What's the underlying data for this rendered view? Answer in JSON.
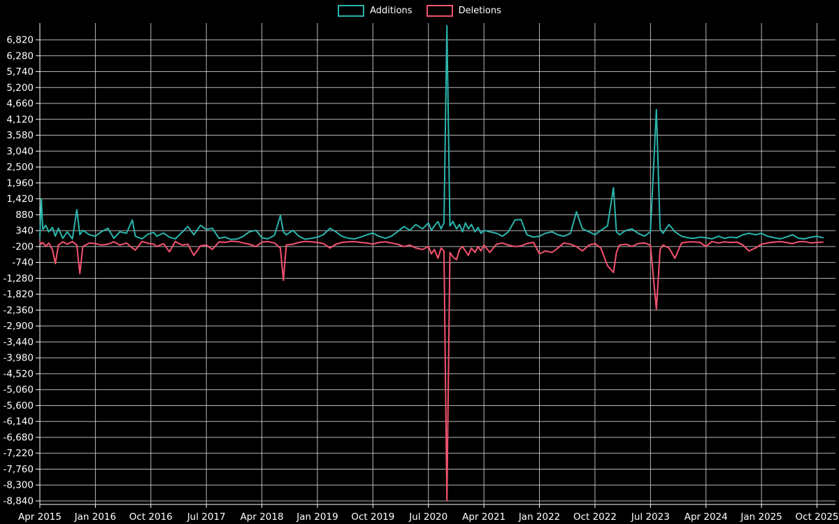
{
  "colors": {
    "background": "#000000",
    "grid": "#d9d9d9",
    "text": "#ffffff",
    "additions": "#2bb5ad",
    "deletions": "#f4536e"
  },
  "legend": {
    "items": [
      {
        "label": "Additions",
        "color": "#2bb5ad"
      },
      {
        "label": "Deletions",
        "color": "#f4536e"
      }
    ]
  },
  "chart_data": {
    "type": "line",
    "legend_position": "top-center",
    "grid": true,
    "x_axis": {
      "tick_labels": [
        "Apr 2015",
        "Jan 2016",
        "Oct 2016",
        "Jul 2017",
        "Apr 2018",
        "Jan 2019",
        "Oct 2019",
        "Jul 2020",
        "Apr 2021",
        "Jan 2022",
        "Oct 2022",
        "Jul 2023",
        "Apr 2024",
        "Jan 2025",
        "Oct 2025"
      ],
      "tick_positions": [
        2015.25,
        2016.0,
        2016.75,
        2017.5,
        2018.25,
        2019.0,
        2019.75,
        2020.5,
        2021.25,
        2022.0,
        2022.75,
        2023.5,
        2024.25,
        2025.0,
        2025.75
      ],
      "range": [
        2015.25,
        2026.0
      ]
    },
    "y_axis": {
      "ticks": [
        6820,
        6280,
        5740,
        5200,
        4660,
        4120,
        3580,
        3040,
        2500,
        1960,
        1420,
        880,
        340,
        -200,
        -740,
        -1280,
        -1820,
        -2360,
        -2900,
        -3440,
        -3980,
        -4520,
        -5060,
        -5600,
        -6140,
        -6680,
        -7220,
        -7760,
        -8300,
        -8840
      ],
      "tick_step": 540,
      "range": [
        -8840,
        6820
      ]
    },
    "x": [
      2015.25,
      2015.27,
      2015.29,
      2015.33,
      2015.37,
      2015.42,
      2015.46,
      2015.5,
      2015.56,
      2015.62,
      2015.69,
      2015.75,
      2015.79,
      2015.83,
      2015.92,
      2016.0,
      2016.08,
      2016.17,
      2016.25,
      2016.33,
      2016.42,
      2016.5,
      2016.54,
      2016.63,
      2016.71,
      2016.79,
      2016.83,
      2016.92,
      2017.0,
      2017.08,
      2017.17,
      2017.25,
      2017.33,
      2017.42,
      2017.5,
      2017.58,
      2017.67,
      2017.75,
      2017.83,
      2017.92,
      2018.0,
      2018.08,
      2018.17,
      2018.25,
      2018.33,
      2018.42,
      2018.5,
      2018.54,
      2018.58,
      2018.67,
      2018.75,
      2018.83,
      2018.92,
      2019.0,
      2019.08,
      2019.17,
      2019.25,
      2019.33,
      2019.42,
      2019.5,
      2019.58,
      2019.67,
      2019.75,
      2019.83,
      2019.92,
      2020.0,
      2020.08,
      2020.17,
      2020.25,
      2020.33,
      2020.42,
      2020.5,
      2020.54,
      2020.58,
      2020.63,
      2020.67,
      2020.71,
      2020.75,
      2020.79,
      2020.83,
      2020.88,
      2020.92,
      2020.96,
      2021.0,
      2021.04,
      2021.08,
      2021.13,
      2021.17,
      2021.21,
      2021.25,
      2021.33,
      2021.42,
      2021.5,
      2021.58,
      2021.67,
      2021.75,
      2021.83,
      2021.92,
      2022.0,
      2022.08,
      2022.17,
      2022.25,
      2022.33,
      2022.42,
      2022.5,
      2022.58,
      2022.67,
      2022.75,
      2022.83,
      2022.92,
      2023.0,
      2023.04,
      2023.08,
      2023.17,
      2023.25,
      2023.33,
      2023.42,
      2023.5,
      2023.58,
      2023.63,
      2023.67,
      2023.75,
      2023.83,
      2023.92,
      2024.0,
      2024.08,
      2024.17,
      2024.25,
      2024.33,
      2024.42,
      2024.5,
      2024.58,
      2024.67,
      2024.75,
      2024.83,
      2024.92,
      2025.0,
      2025.08,
      2025.17,
      2025.25,
      2025.33,
      2025.42,
      2025.5,
      2025.58,
      2025.67,
      2025.75,
      2025.83
    ],
    "series": [
      {
        "name": "Additions",
        "color": "#2bb5ad",
        "values": [
          150,
          1420,
          380,
          520,
          300,
          450,
          150,
          420,
          80,
          300,
          60,
          1050,
          200,
          350,
          200,
          150,
          300,
          420,
          80,
          300,
          250,
          700,
          150,
          60,
          220,
          280,
          150,
          260,
          120,
          60,
          280,
          480,
          200,
          520,
          380,
          420,
          80,
          120,
          40,
          60,
          150,
          300,
          350,
          100,
          60,
          180,
          850,
          300,
          200,
          350,
          150,
          50,
          80,
          120,
          200,
          420,
          300,
          150,
          80,
          60,
          120,
          200,
          260,
          150,
          80,
          150,
          300,
          480,
          350,
          550,
          400,
          600,
          350,
          500,
          650,
          400,
          600,
          7300,
          500,
          650,
          400,
          550,
          300,
          600,
          400,
          550,
          300,
          450,
          250,
          350,
          300,
          250,
          150,
          300,
          700,
          720,
          200,
          120,
          150,
          250,
          300,
          200,
          150,
          250,
          980,
          400,
          300,
          200,
          350,
          500,
          1800,
          300,
          200,
          350,
          400,
          250,
          150,
          300,
          4450,
          400,
          250,
          550,
          300,
          150,
          100,
          80,
          120,
          100,
          60,
          150,
          80,
          120,
          100,
          200,
          250,
          200,
          250,
          150,
          100,
          60,
          120,
          200,
          80,
          60,
          120,
          150,
          100
        ]
      },
      {
        "name": "Deletions",
        "color": "#f4536e",
        "values": [
          -50,
          -120,
          -60,
          -200,
          -80,
          -300,
          -780,
          -150,
          -40,
          -120,
          -30,
          -150,
          -1120,
          -200,
          -80,
          -100,
          -150,
          -120,
          -40,
          -150,
          -80,
          -250,
          -320,
          -30,
          -90,
          -120,
          -200,
          -100,
          -380,
          -30,
          -150,
          -120,
          -500,
          -180,
          -150,
          -300,
          -40,
          -60,
          -20,
          -30,
          -80,
          -120,
          -200,
          -50,
          -30,
          -80,
          -250,
          -1350,
          -150,
          -120,
          -60,
          -25,
          -40,
          -60,
          -100,
          -250,
          -120,
          -60,
          -40,
          -30,
          -60,
          -80,
          -120,
          -60,
          -40,
          -80,
          -120,
          -200,
          -150,
          -250,
          -300,
          -200,
          -450,
          -300,
          -600,
          -250,
          -350,
          -8840,
          -400,
          -550,
          -650,
          -300,
          -200,
          -350,
          -500,
          -250,
          -400,
          -200,
          -350,
          -150,
          -400,
          -120,
          -80,
          -150,
          -200,
          -180,
          -100,
          -60,
          -450,
          -350,
          -400,
          -250,
          -80,
          -120,
          -200,
          -350,
          -150,
          -100,
          -250,
          -850,
          -1080,
          -400,
          -150,
          -120,
          -200,
          -100,
          -80,
          -150,
          -2330,
          -300,
          -150,
          -250,
          -600,
          -80,
          -50,
          -40,
          -60,
          -200,
          -30,
          -80,
          -40,
          -60,
          -50,
          -150,
          -350,
          -250,
          -120,
          -80,
          -50,
          -30,
          -60,
          -100,
          -40,
          -30,
          -80,
          -60,
          -50
        ]
      }
    ]
  }
}
